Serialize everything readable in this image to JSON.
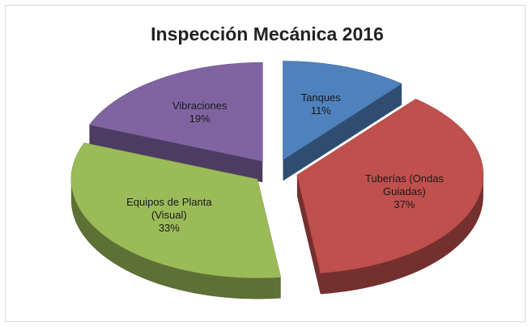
{
  "chart_data": {
    "type": "pie",
    "title": "Inspección Mecánica 2016",
    "categories": [
      "Tanques",
      "Tuberías (Ondas Guiadas)",
      "Equipos de Planta (Visual)",
      "Vibraciones"
    ],
    "values": [
      11,
      37,
      33,
      19
    ],
    "value_labels": [
      "11%",
      "37%",
      "33%",
      "19%"
    ],
    "colors": [
      "#4f81bd",
      "#c0504d",
      "#9bbb59",
      "#8064a2"
    ]
  }
}
